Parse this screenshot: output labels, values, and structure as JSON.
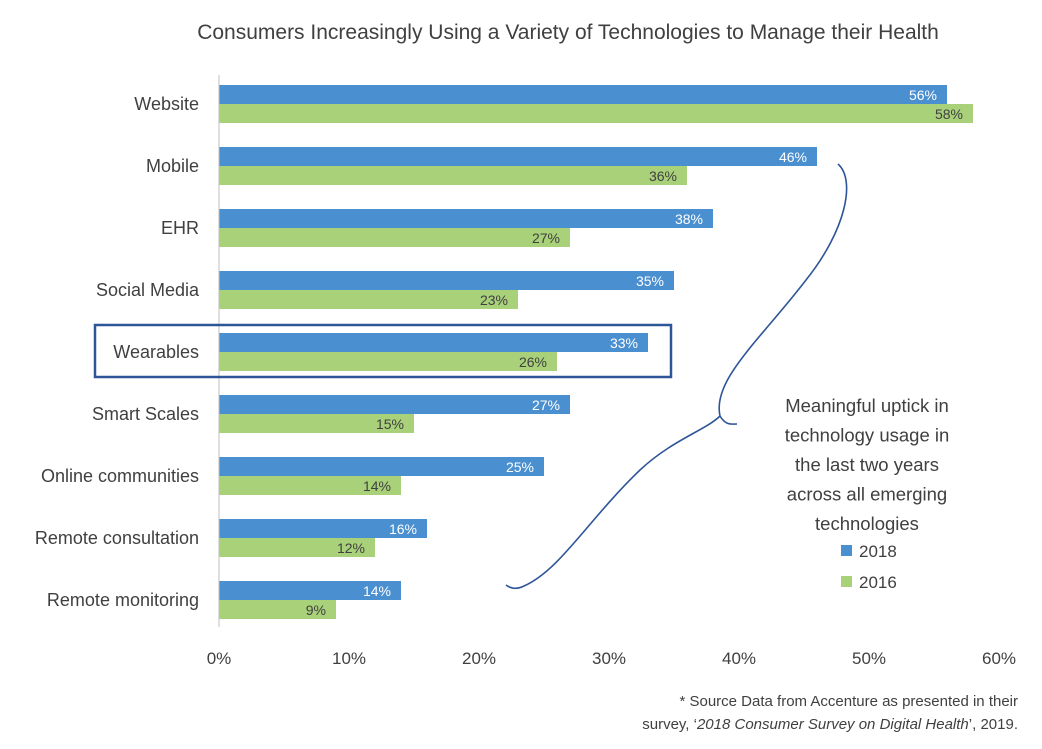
{
  "chart_data": {
    "type": "bar",
    "orientation": "horizontal",
    "title": "Consumers Increasingly Using a Variety of Technologies to Manage their Health",
    "categories": [
      "Website",
      "Mobile",
      "EHR",
      "Social Media",
      "Wearables",
      "Smart Scales",
      "Online communities",
      "Remote consultation",
      "Remote monitoring"
    ],
    "series": [
      {
        "name": "2018",
        "color": "#4a8fcf",
        "values": [
          56,
          46,
          38,
          35,
          33,
          27,
          25,
          16,
          14
        ],
        "labels": [
          "56%",
          "46%",
          "38%",
          "35%",
          "33%",
          "27%",
          "25%",
          "16%",
          "14%"
        ]
      },
      {
        "name": "2016",
        "color": "#a9d17a",
        "values": [
          58,
          36,
          27,
          23,
          26,
          15,
          14,
          12,
          9
        ],
        "labels": [
          "58%",
          "36%",
          "27%",
          "23%",
          "26%",
          "15%",
          "14%",
          "12%",
          "9%"
        ]
      }
    ],
    "xlim": [
      0,
      60
    ],
    "xticks": [
      "0%",
      "10%",
      "20%",
      "30%",
      "40%",
      "50%",
      "60%"
    ],
    "highlighted_category": "Wearables",
    "annotation": "Meaningful uptick in technology usage in the last two years across all emerging technologies",
    "legend": {
      "position": "right",
      "entries": [
        "2018",
        "2016"
      ]
    },
    "grid": false
  },
  "source_note": {
    "line1": "* Source Data from Accenture as presented in their",
    "prefix": "survey, ‘",
    "italic": "2018 Consumer Survey on Digital Health",
    "suffix": "’, 2019."
  }
}
